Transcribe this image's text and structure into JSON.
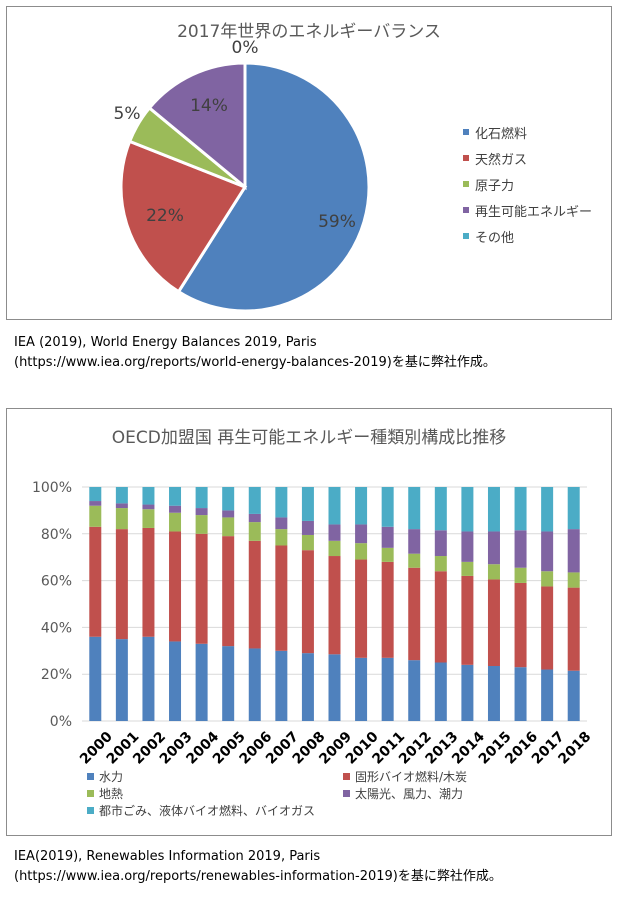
{
  "pie": {
    "title": "2017年世界のエネルギーバランス",
    "legend": [
      {
        "label": "化石燃料",
        "color": "#4f81bd"
      },
      {
        "label": "天然ガス",
        "color": "#c0504d"
      },
      {
        "label": "原子力",
        "color": "#9bbb59"
      },
      {
        "label": "再生可能エネルギー",
        "color": "#8064a2"
      },
      {
        "label": "その他",
        "color": "#4bacc6"
      }
    ],
    "caption_line1": "IEA (2019), World Energy Balances 2019, Paris",
    "caption_line2": "(https://www.iea.org/reports/world-energy-balances-2019)を基に弊社作成。"
  },
  "bar": {
    "title": "OECD加盟国 再生可能エネルギー種類別構成比推移",
    "legend": [
      {
        "label": "水力",
        "color": "#4f81bd"
      },
      {
        "label": "固形バイオ燃料/木炭",
        "color": "#c0504d"
      },
      {
        "label": "地熱",
        "color": "#9bbb59"
      },
      {
        "label": "太陽光、風力、潮力",
        "color": "#8064a2"
      },
      {
        "label": "都市ごみ、液体バイオ燃料、バイオガス",
        "color": "#4bacc6"
      }
    ],
    "caption_line1": "IEA(2019), Renewables Information 2019, Paris",
    "caption_line2": "(https://www.iea.org/reports/renewables-information-2019)を基に弊社作成。"
  },
  "chart_data": [
    {
      "type": "pie",
      "title": "2017年世界のエネルギーバランス",
      "categories": [
        "化石燃料",
        "天然ガス",
        "原子力",
        "再生可能エネルギー",
        "その他"
      ],
      "values": [
        59,
        22,
        5,
        14,
        0
      ],
      "value_labels": [
        "59%",
        "22%",
        "5%",
        "14%",
        "0%"
      ],
      "colors": [
        "#4f81bd",
        "#c0504d",
        "#9bbb59",
        "#8064a2",
        "#4bacc6"
      ],
      "legend_position": "right"
    },
    {
      "type": "bar",
      "stacked": "percent",
      "title": "OECD加盟国 再生可能エネルギー種類別構成比推移",
      "categories": [
        "2000",
        "2001",
        "2002",
        "2003",
        "2004",
        "2005",
        "2006",
        "2007",
        "2008",
        "2009",
        "2010",
        "2011",
        "2012",
        "2013",
        "2014",
        "2015",
        "2016",
        "2017",
        "2018"
      ],
      "series": [
        {
          "name": "水力",
          "color": "#4f81bd",
          "values": [
            36,
            35,
            36,
            34,
            33,
            32,
            31,
            30,
            29,
            28.5,
            27,
            27,
            26,
            25,
            24,
            23.5,
            23,
            22,
            21.5
          ]
        },
        {
          "name": "固形バイオ燃料/木炭",
          "color": "#c0504d",
          "values": [
            47,
            47,
            46.5,
            47,
            47,
            47,
            46,
            45,
            44,
            42,
            42,
            41,
            39.5,
            39,
            38,
            37,
            36,
            35.5,
            35.5
          ]
        },
        {
          "name": "地熱",
          "color": "#9bbb59",
          "values": [
            9,
            9,
            8,
            8,
            8,
            8,
            8,
            7,
            6.5,
            6.5,
            7,
            6,
            6,
            6.5,
            6,
            6.5,
            6.5,
            6.5,
            6.5
          ]
        },
        {
          "name": "太陽光、風力、潮力",
          "color": "#8064a2",
          "values": [
            2,
            2,
            2,
            3,
            3,
            3,
            3.5,
            5,
            6,
            7,
            8,
            9,
            10.5,
            11,
            13,
            14,
            16,
            17,
            18.5
          ]
        },
        {
          "name": "都市ごみ、液体バイオ燃料、バイオガス",
          "color": "#4bacc6",
          "values": [
            6,
            7,
            7.5,
            8,
            9,
            10,
            11.5,
            13,
            14.5,
            16,
            16,
            17,
            18,
            18.5,
            19,
            19,
            18.5,
            19,
            18
          ]
        }
      ],
      "y_ticks": [
        "0%",
        "20%",
        "40%",
        "60%",
        "80%",
        "100%"
      ],
      "ylim": [
        0,
        100
      ],
      "grid": true,
      "legend_position": "bottom"
    }
  ]
}
